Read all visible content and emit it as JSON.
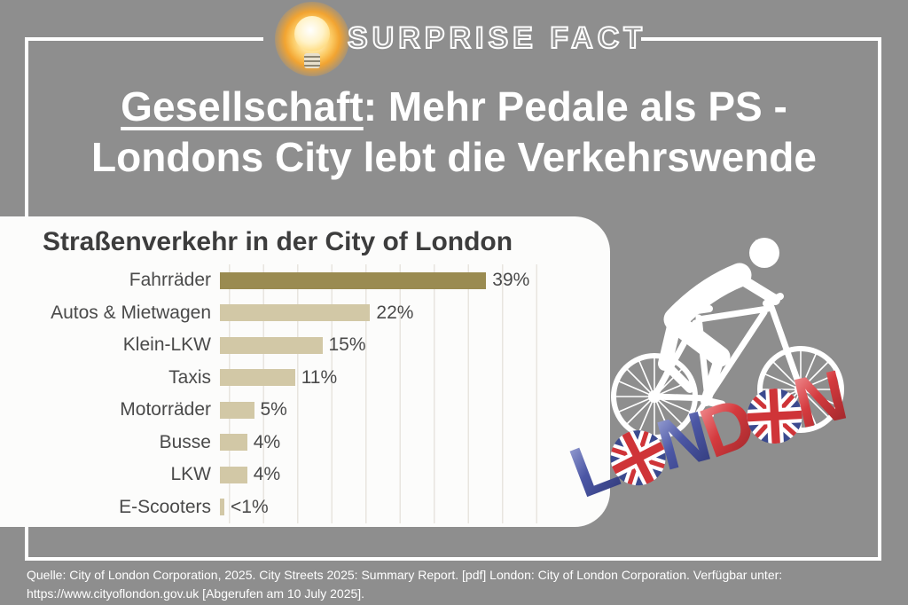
{
  "header": {
    "badge": "SURPRISE FACT"
  },
  "title": {
    "underlined": "Gesellschaft",
    "line1_rest": ": Mehr Pedale als PS -",
    "line2": "Londons City lebt die Verkehrswende"
  },
  "chart_data": {
    "type": "bar",
    "orientation": "horizontal",
    "title": "Straßenverkehr in der City of London",
    "categories": [
      "Fahrräder",
      "Autos & Mietwagen",
      "Klein-LKW",
      "Taxis",
      "Motorräder",
      "Busse",
      "LKW",
      "E-Scooters"
    ],
    "values": [
      39,
      22,
      15,
      11,
      5,
      4,
      4,
      0.5
    ],
    "value_labels": [
      "39%",
      "22%",
      "15%",
      "11%",
      "5%",
      "4%",
      "4%",
      "<1%"
    ],
    "xlim": [
      0,
      45
    ],
    "gridline_step": 5,
    "grid": true,
    "highlight_index": 0,
    "colors": {
      "highlight": "#9a8b51",
      "default": "#d2c8a6"
    }
  },
  "decor": {
    "london_letters": [
      {
        "char": "L",
        "style": "blue"
      },
      {
        "char": "O",
        "style": "flag"
      },
      {
        "char": "N",
        "style": "blue"
      },
      {
        "char": "D",
        "style": "red"
      },
      {
        "char": "O",
        "style": "flag"
      },
      {
        "char": "N",
        "style": "red"
      }
    ],
    "flag_colors": {
      "blue": "#3b4a8f",
      "red": "#cf3438",
      "white": "#ffffff"
    }
  },
  "footer": {
    "line1": "Quelle: City of London Corporation, 2025. City Streets 2025: Summary Report. [pdf] London: City of London Corporation. Verfügbar unter:",
    "line2": "https://www.cityoflondon.gov.uk [Abgerufen am 10 July 2025]."
  },
  "colors": {
    "background": "#8e8e8e",
    "frame": "#ffffff",
    "panel": "#fcfcfb",
    "text_dark": "#4a4a4a",
    "text_white": "#ffffff"
  }
}
